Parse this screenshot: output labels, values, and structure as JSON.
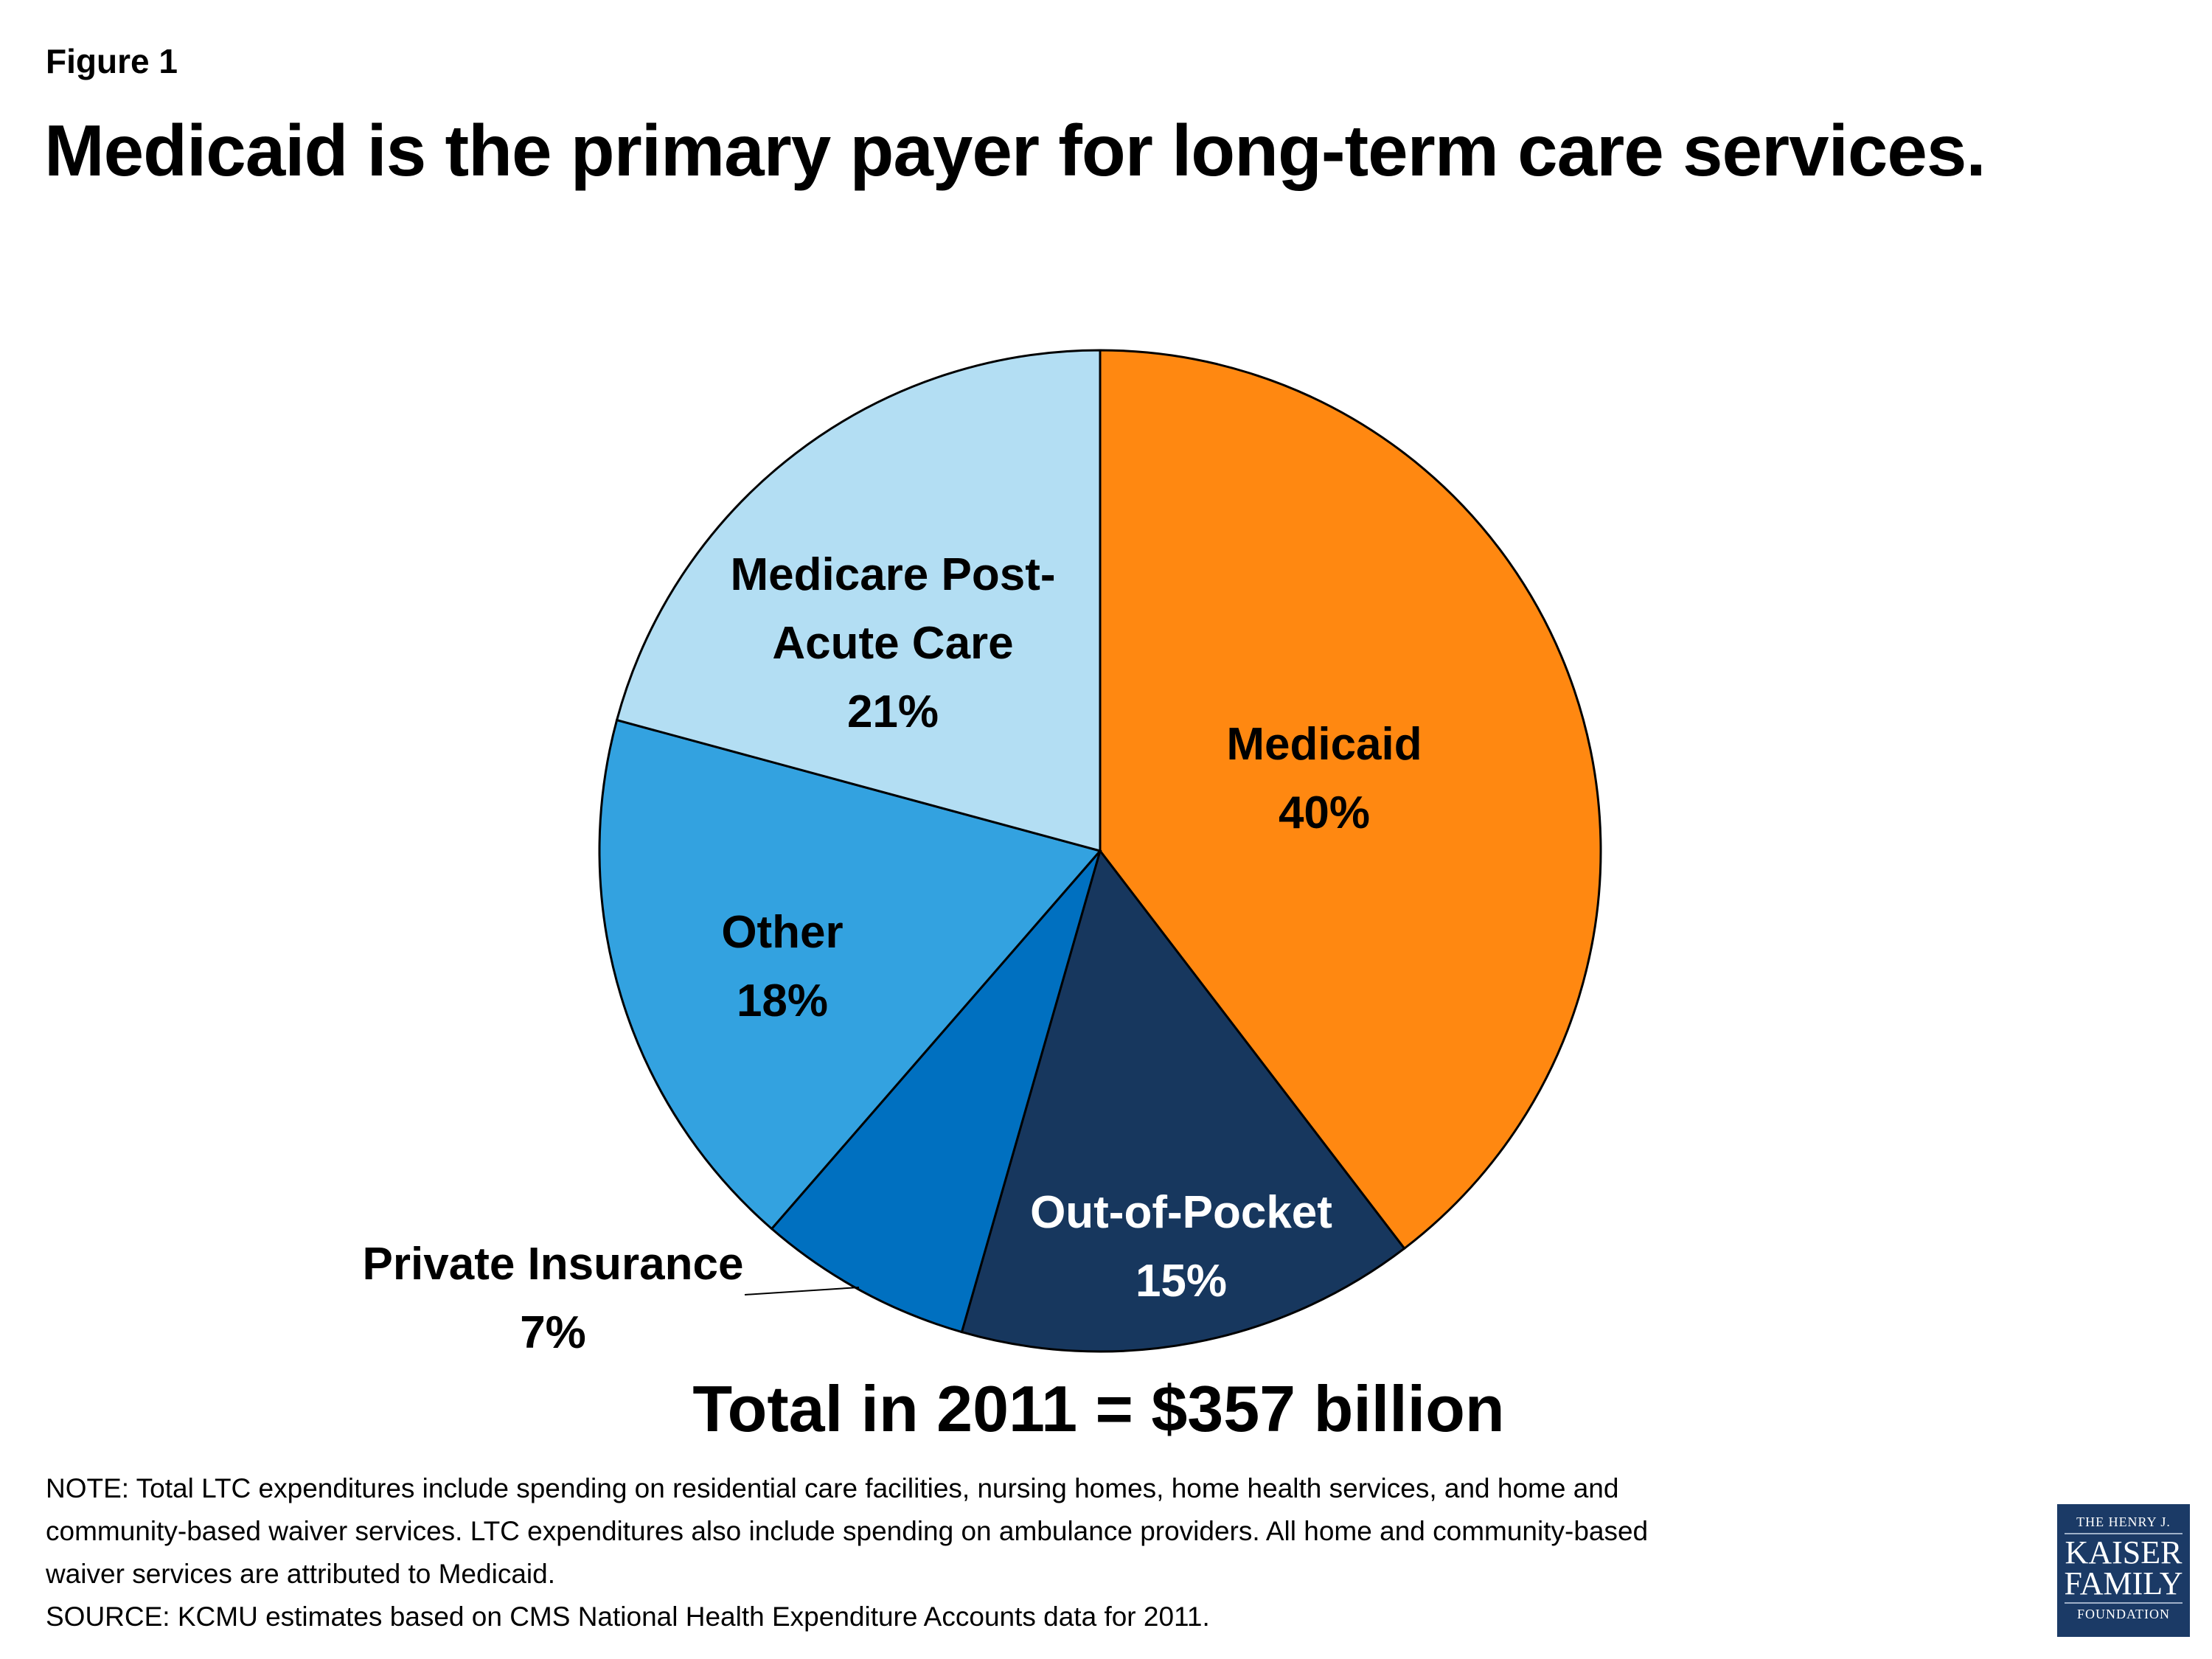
{
  "figure_label": "Figure 1",
  "title": "Medicaid is the primary payer for long-term care services.",
  "chart_data": {
    "type": "pie",
    "start": "top, clockwise",
    "slices": [
      {
        "name": "Medicaid",
        "value": 40,
        "label_lines": [
          "Medicaid"
        ],
        "pct": "40%",
        "color": "#FF8811",
        "text_color": "#000000"
      },
      {
        "name": "Out-of-Pocket",
        "value": 15,
        "label_lines": [
          "Out-of-Pocket"
        ],
        "pct": "15%",
        "color": "#17375E",
        "text_color": "#FFFFFF"
      },
      {
        "name": "Private Insurance",
        "value": 7,
        "label_lines": [
          "Private Insurance"
        ],
        "pct": "7%",
        "color": "#0070C0",
        "text_color": "#000000"
      },
      {
        "name": "Other",
        "value": 18,
        "label_lines": [
          "Other"
        ],
        "pct": "18%",
        "color": "#33A2E0",
        "text_color": "#000000"
      },
      {
        "name": "Medicare Post-Acute Care",
        "value": 21,
        "label_lines": [
          "Medicare Post-",
          "Acute Care"
        ],
        "pct": "21%",
        "color": "#B3DEF3",
        "text_color": "#000000"
      }
    ]
  },
  "total": "Total in 2011 = $357 billion",
  "notes": [
    "NOTE: Total LTC expenditures include spending on residential care facilities, nursing homes, home health services, and home and",
    "community-based waiver services.  LTC expenditures also include spending on ambulance providers.  All home and community-based",
    "waiver services are attributed to Medicaid.",
    "SOURCE: KCMU estimates based on CMS National Health Expenditure Accounts data for 2011."
  ],
  "logo": {
    "line1": "THE HENRY J.",
    "line2": "KAISER",
    "line3": "FAMILY",
    "line4": "FOUNDATION"
  }
}
